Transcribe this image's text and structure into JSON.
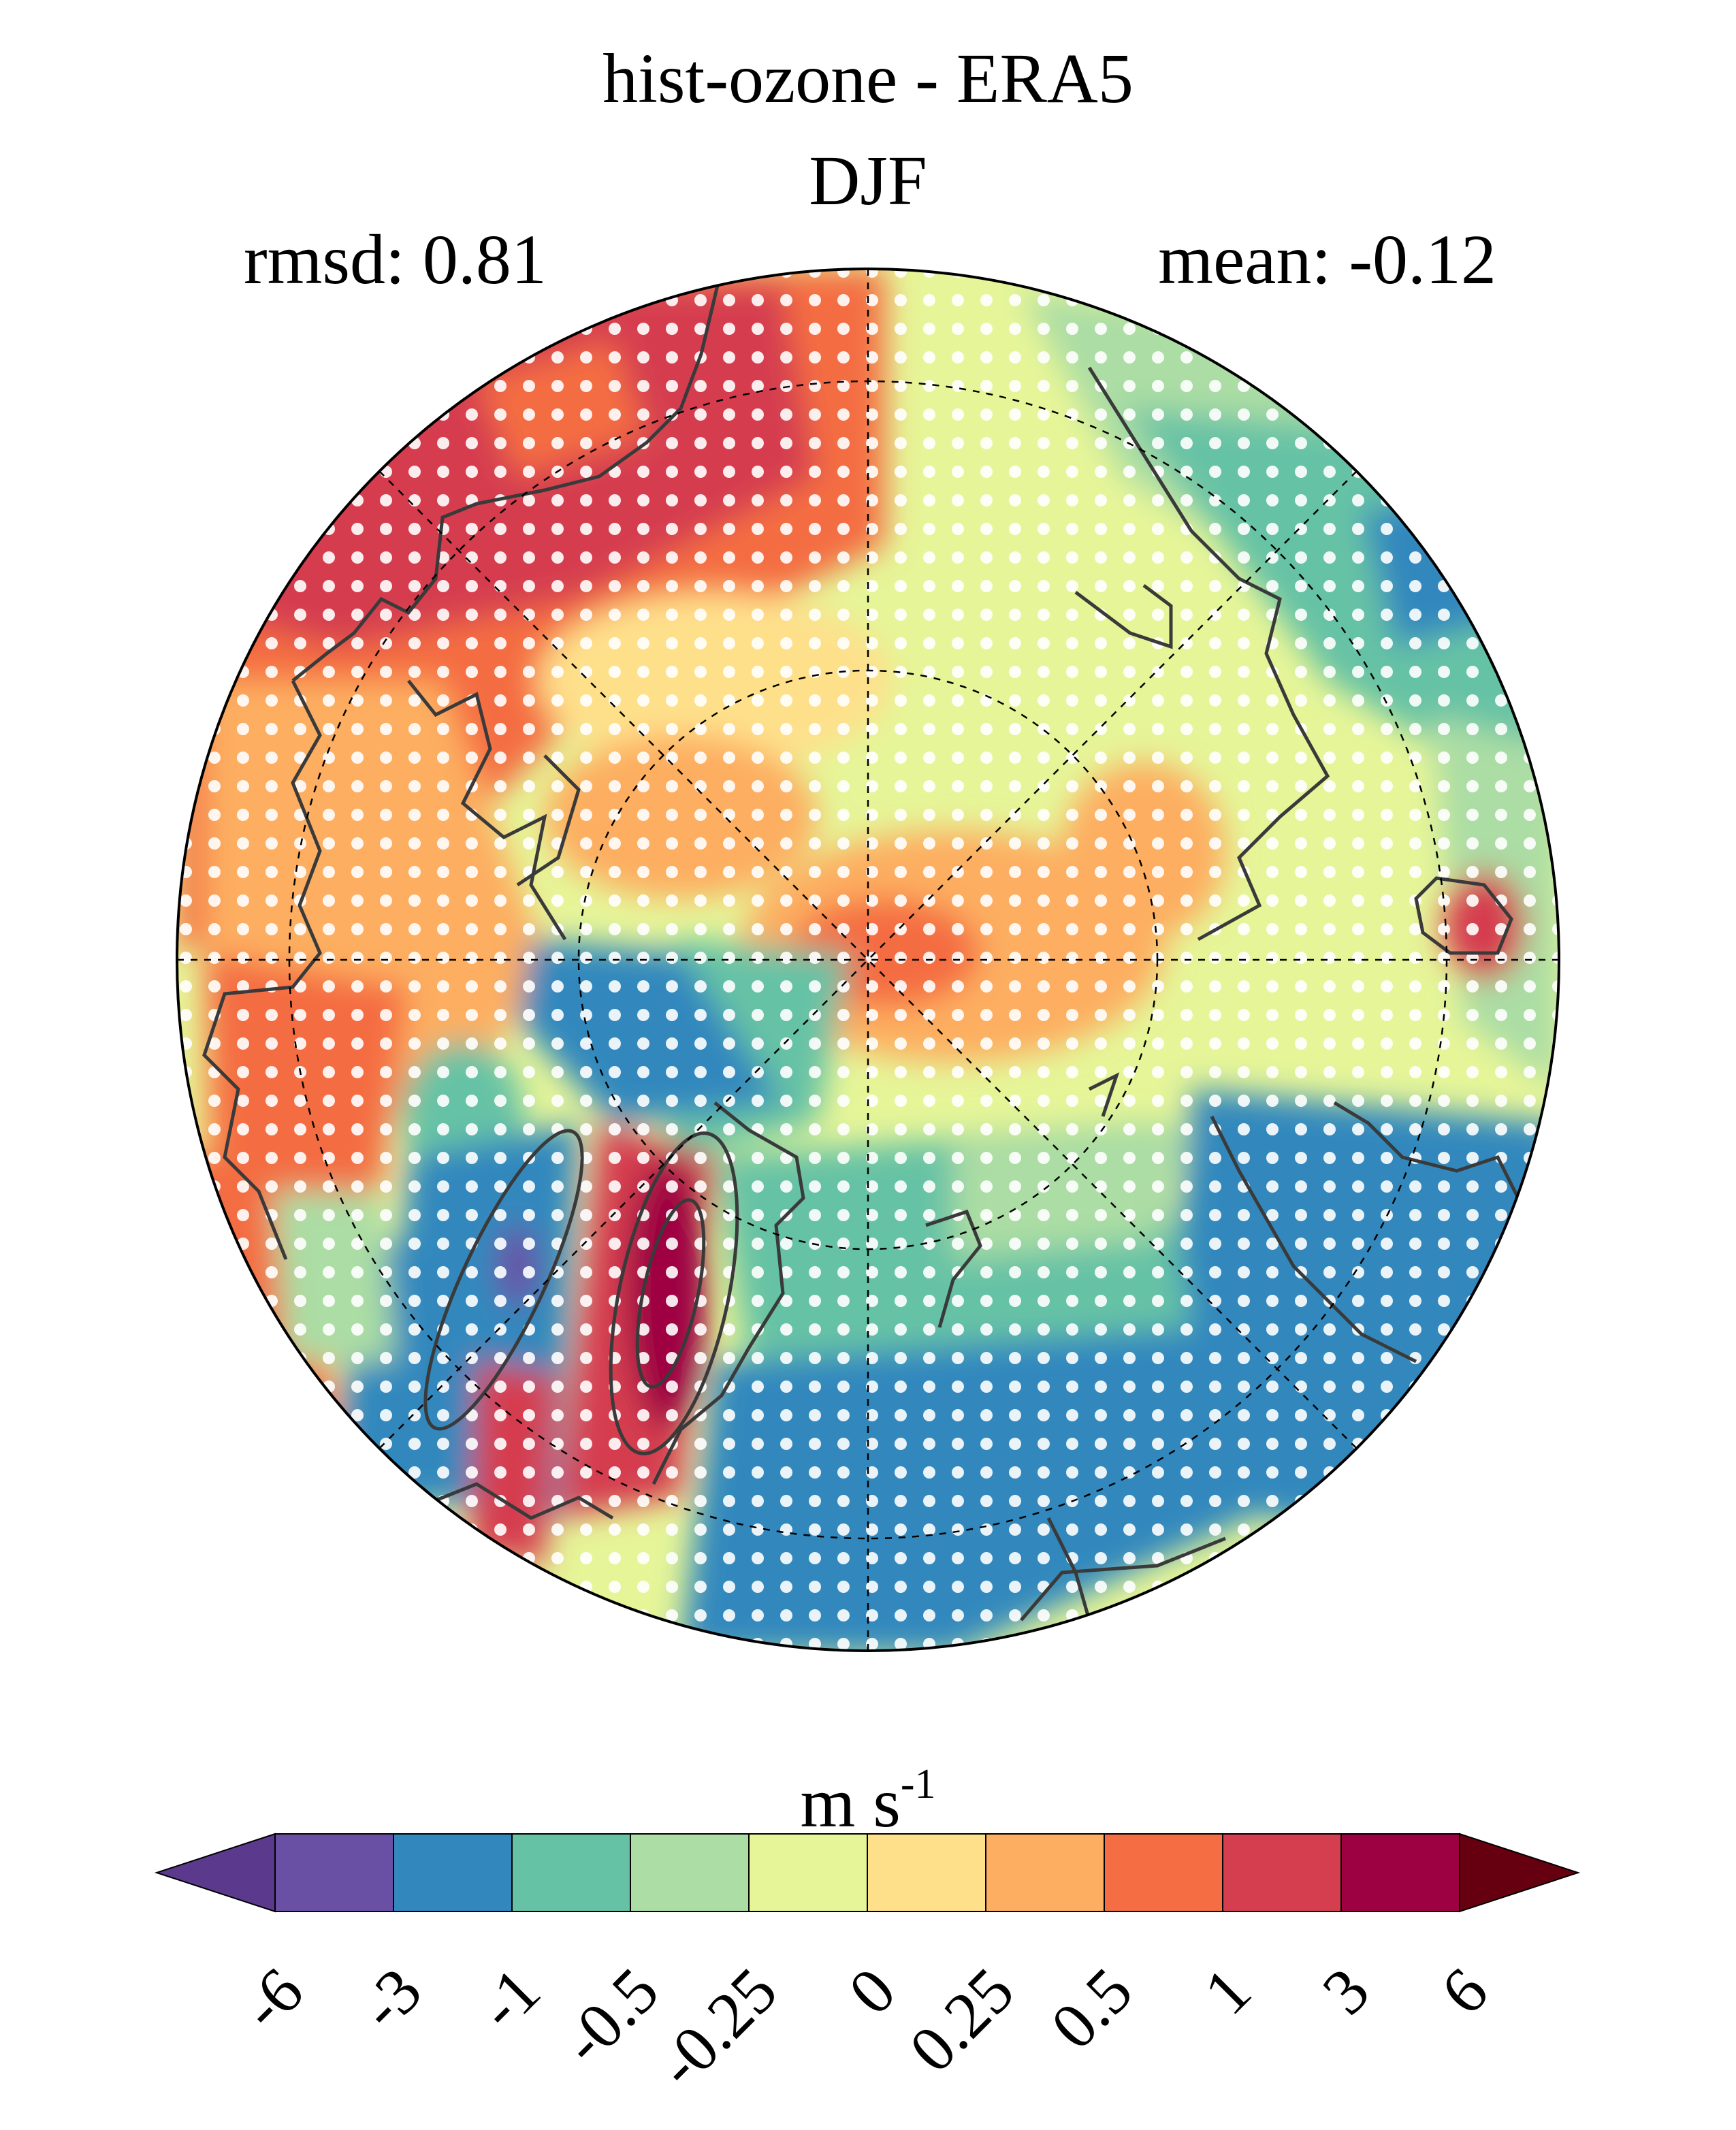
{
  "title": "hist-ozone - ERA5",
  "season": "DJF",
  "stats": {
    "rmsd": "rmsd: 0.81",
    "mean": "mean: -0.12"
  },
  "colorbar": {
    "units_base": "m s",
    "units_exp": "-1",
    "ticks": [
      "-6",
      "-3",
      "-1",
      "-0.5",
      "-0.25",
      "0",
      "0.25",
      "0.5",
      "1",
      "3",
      "6"
    ],
    "colors": [
      "#5b3a8e",
      "#6a50a5",
      "#3288bd",
      "#66c2a5",
      "#abdda4",
      "#e6f598",
      "#fee08b",
      "#fdae61",
      "#f46d43",
      "#d53e4f",
      "#9e0142",
      "#660010"
    ],
    "extend": "both"
  },
  "map": {
    "projection": "north polar stereographic",
    "stippling_color": "#ffffff",
    "coastline_color": "#3a3a3a"
  }
}
